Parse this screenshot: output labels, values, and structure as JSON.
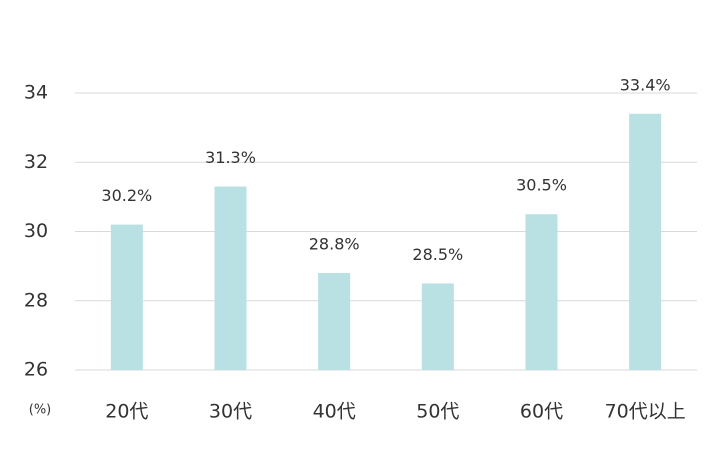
{
  "chart_data": {
    "type": "bar",
    "categories": [
      "20代",
      "30代",
      "40代",
      "50代",
      "60代",
      "70代以上"
    ],
    "values": [
      30.2,
      31.3,
      28.8,
      28.5,
      30.5,
      33.4
    ],
    "value_labels": [
      "30.2%",
      "31.3%",
      "28.8%",
      "28.5%",
      "30.5%",
      "33.4%"
    ],
    "color": "#b9e0e3",
    "ylabel": "(%)",
    "ylim": [
      26,
      34
    ],
    "yticks": [
      26,
      28,
      30,
      32,
      34
    ],
    "grid": true
  }
}
